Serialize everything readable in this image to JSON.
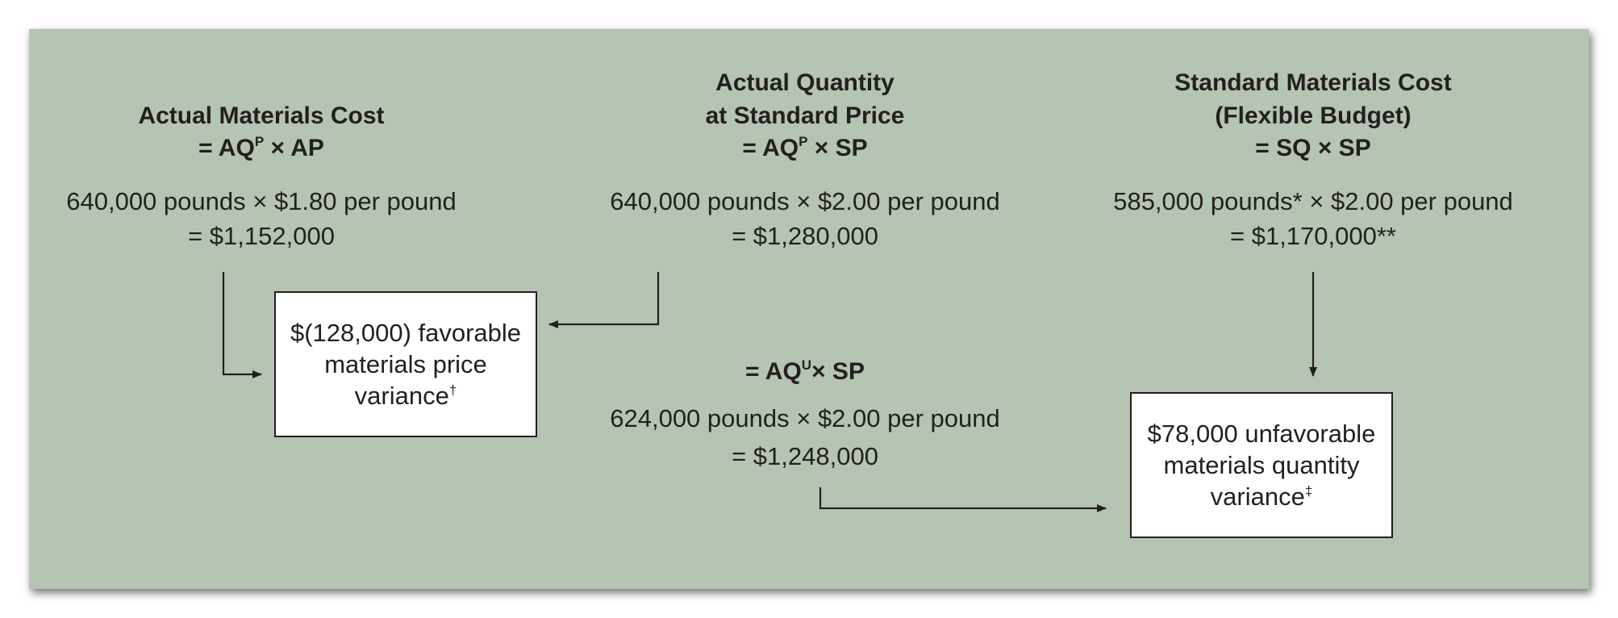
{
  "columns": {
    "actual_cost": {
      "title_line1": "Actual Materials Cost",
      "formula_prefix": "= AQ",
      "formula_sup": "P",
      "formula_suffix": " × AP",
      "calc": "640,000 pounds × $1.80 per pound",
      "result": "=  $1,152,000"
    },
    "actual_qty_std_price": {
      "title_line1": "Actual Quantity",
      "title_line2": "at Standard Price",
      "formula_prefix": "= AQ",
      "formula_sup": "P",
      "formula_suffix": " × SP",
      "calc": "640,000 pounds × $2.00 per pound",
      "result": "=  $1,280,000"
    },
    "standard_cost": {
      "title_line1": "Standard Materials Cost",
      "title_line2": "(Flexible Budget)",
      "formula": "= SQ × SP",
      "calc": "585,000 pounds* × $2.00 per pound",
      "result": "=  $1,170,000**"
    },
    "actual_qty_used": {
      "formula_prefix": "= AQ",
      "formula_sup": "U",
      "formula_suffix": "× SP",
      "calc": "624,000 pounds × $2.00 per pound",
      "result": "=  $1,248,000"
    }
  },
  "variances": {
    "price": {
      "line1": "$(128,000) favorable",
      "line2": "materials price",
      "line3": "variance",
      "mark": "†"
    },
    "quantity": {
      "line1": "$78,000 unfavorable",
      "line2": "materials quantity",
      "line3": "variance",
      "mark": "‡"
    }
  },
  "colors": {
    "panel_background": "#b5c4b3",
    "text": "#231f20",
    "box_fill": "#ffffff"
  }
}
